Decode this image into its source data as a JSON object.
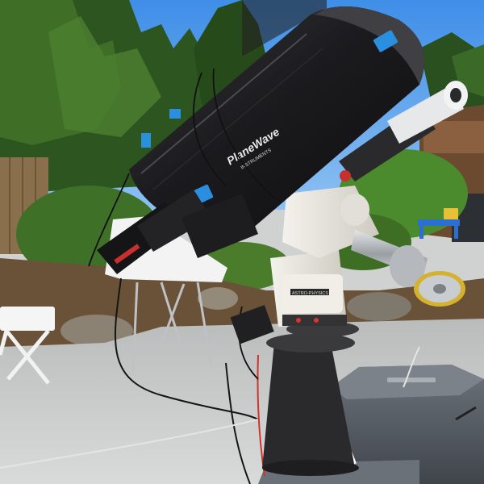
{
  "photo": {
    "tube_brand": "PlaneWave",
    "tube_subtitle": "INSTRUMENTS",
    "mount_label": "ASTRO-PHYSICS"
  },
  "colors": {
    "sky": "#4f97ea",
    "foliage": "#2f5a22",
    "tube": "#1b1b1d",
    "accent_blue": "#2b8fe0",
    "mount_white": "#ece9e2",
    "pier": "#2a2a2a",
    "concrete": "#c9cccb"
  }
}
